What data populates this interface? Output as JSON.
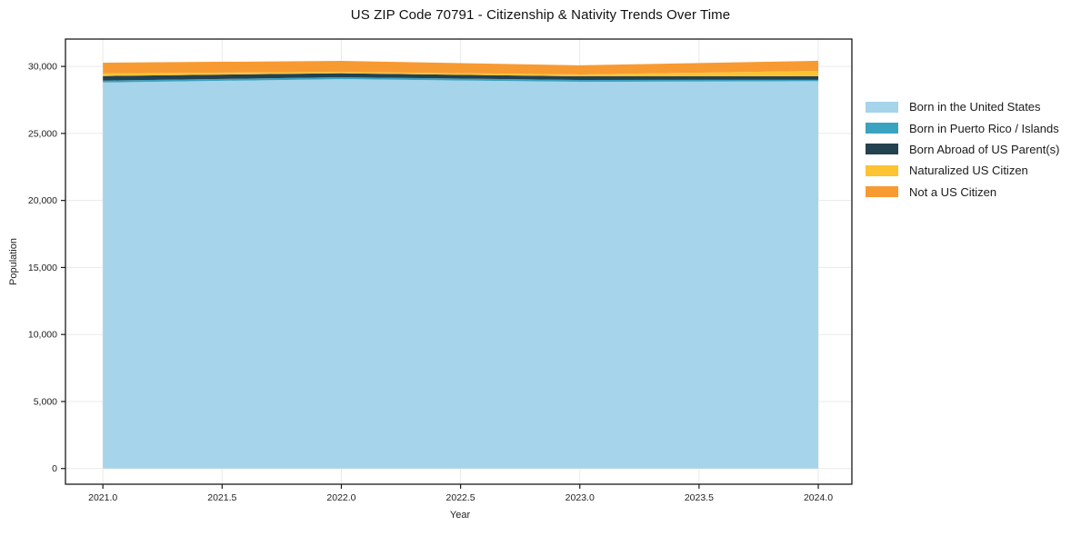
{
  "chart_data": {
    "type": "area",
    "stacked": true,
    "title": "US ZIP Code 70791 - Citizenship & Nativity Trends Over Time",
    "xlabel": "Year",
    "ylabel": "Population",
    "x": [
      2021,
      2022,
      2023,
      2024
    ],
    "series": [
      {
        "name": "Born in the United States",
        "color": "#a6d4ea",
        "values": [
          28800,
          29050,
          28850,
          28900
        ]
      },
      {
        "name": "Born in Puerto Rico / Islands",
        "color": "#3aa3c2",
        "values": [
          140,
          140,
          140,
          100
        ]
      },
      {
        "name": "Born Abroad of US Parent(s)",
        "color": "#24414f",
        "values": [
          340,
          300,
          270,
          270
        ]
      },
      {
        "name": "Naturalized US Citizen",
        "color": "#fcc332",
        "values": [
          200,
          100,
          140,
          400
        ]
      },
      {
        "name": "Not a US Citizen",
        "color": "#f89a32",
        "values": [
          800,
          820,
          680,
          750
        ]
      }
    ],
    "xlim": [
      2020.843,
      2024.141
    ],
    "ylim": [
      -1170,
      32040
    ],
    "xticks": [
      {
        "v": 2021.0,
        "label": "2021.0"
      },
      {
        "v": 2021.5,
        "label": "2021.5"
      },
      {
        "v": 2022.0,
        "label": "2022.0"
      },
      {
        "v": 2022.5,
        "label": "2022.5"
      },
      {
        "v": 2023.0,
        "label": "2023.0"
      },
      {
        "v": 2023.5,
        "label": "2023.5"
      },
      {
        "v": 2024.0,
        "label": "2024.0"
      }
    ],
    "yticks": [
      {
        "v": 0,
        "label": "0"
      },
      {
        "v": 5000,
        "label": "5,000"
      },
      {
        "v": 10000,
        "label": "10,000"
      },
      {
        "v": 15000,
        "label": "15,000"
      },
      {
        "v": 20000,
        "label": "20,000"
      },
      {
        "v": 25000,
        "label": "25,000"
      },
      {
        "v": 30000,
        "label": "30,000"
      }
    ],
    "grid": true,
    "legend_position": "right"
  }
}
